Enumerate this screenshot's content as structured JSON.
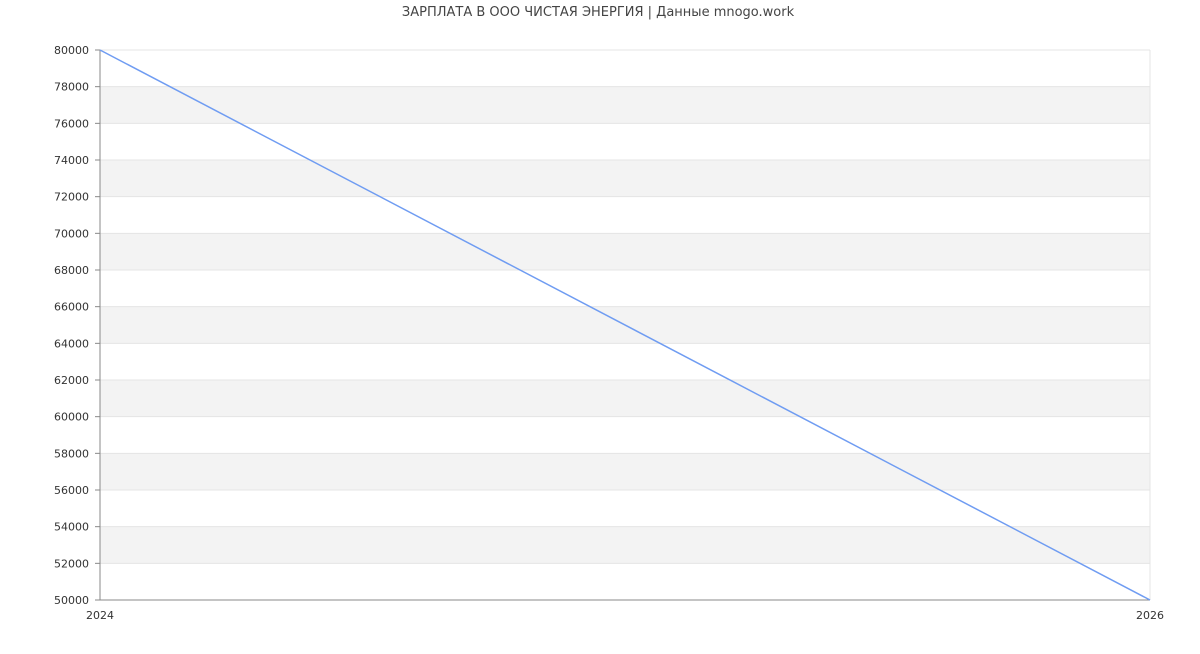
{
  "chart_data": {
    "type": "line",
    "title": "ЗАРПЛАТА В ООО ЧИСТАЯ ЭНЕРГИЯ | Данные mnogo.work",
    "xlabel": "",
    "ylabel": "",
    "x": [
      2024,
      2026
    ],
    "x_tick_labels": [
      "2024",
      "2026"
    ],
    "xlim": [
      2024,
      2026
    ],
    "ylim": [
      50000,
      80000
    ],
    "y_ticks": [
      50000,
      52000,
      54000,
      56000,
      58000,
      60000,
      62000,
      64000,
      66000,
      68000,
      70000,
      72000,
      74000,
      76000,
      78000,
      80000
    ],
    "series": [
      {
        "values": [
          80000,
          50000
        ],
        "color": "#6f9cf2"
      }
    ],
    "grid": true,
    "alternating_bands": true,
    "band_color": "#f3f3f3",
    "legend": "none"
  }
}
